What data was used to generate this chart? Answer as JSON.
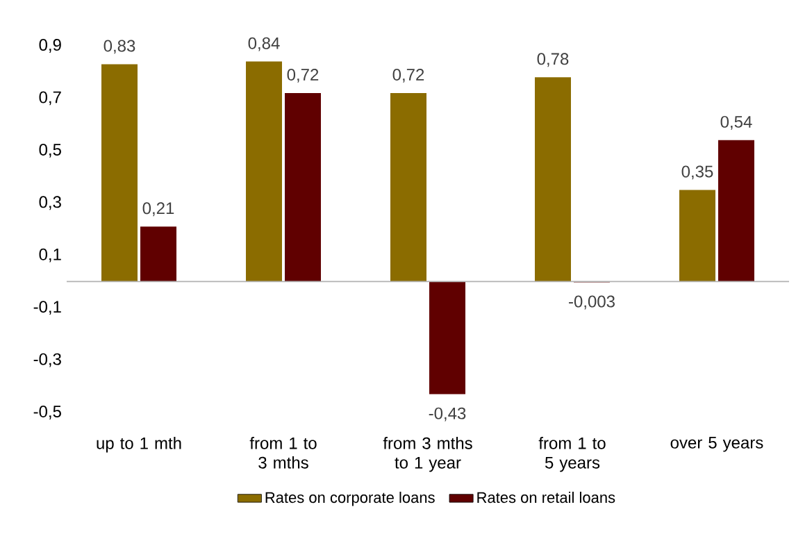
{
  "chart_data": {
    "type": "bar",
    "categories": [
      "up to 1 mth",
      "from 1 to 3 mths",
      "from 3 mths to 1 year",
      "from 1 to 5 years",
      "over 5 years"
    ],
    "series": [
      {
        "name": "Rates on corporate loans",
        "color": "#8b6c00",
        "values": [
          0.83,
          0.84,
          0.72,
          0.78,
          0.35
        ],
        "value_labels": [
          "0,83",
          "0,84",
          "0,72",
          "0,78",
          "0,35"
        ]
      },
      {
        "name": "Rates on retail loans",
        "color": "#600000",
        "values": [
          0.21,
          0.72,
          -0.43,
          -0.003,
          0.54
        ],
        "value_labels": [
          "0,21",
          "0,72",
          "-0,43",
          "-0,003",
          "0,54"
        ]
      }
    ],
    "ylim": [
      -0.5,
      0.9
    ],
    "yticks": [
      {
        "value": 0.9,
        "label": "0,9"
      },
      {
        "value": 0.7,
        "label": "0,7"
      },
      {
        "value": 0.5,
        "label": "0,5"
      },
      {
        "value": 0.3,
        "label": "0,3"
      },
      {
        "value": 0.1,
        "label": "0,1"
      },
      {
        "value": -0.1,
        "label": "-0,1"
      },
      {
        "value": -0.3,
        "label": "-0,3"
      },
      {
        "value": -0.5,
        "label": "-0,5"
      }
    ],
    "grid": false,
    "legend": "bottom"
  }
}
